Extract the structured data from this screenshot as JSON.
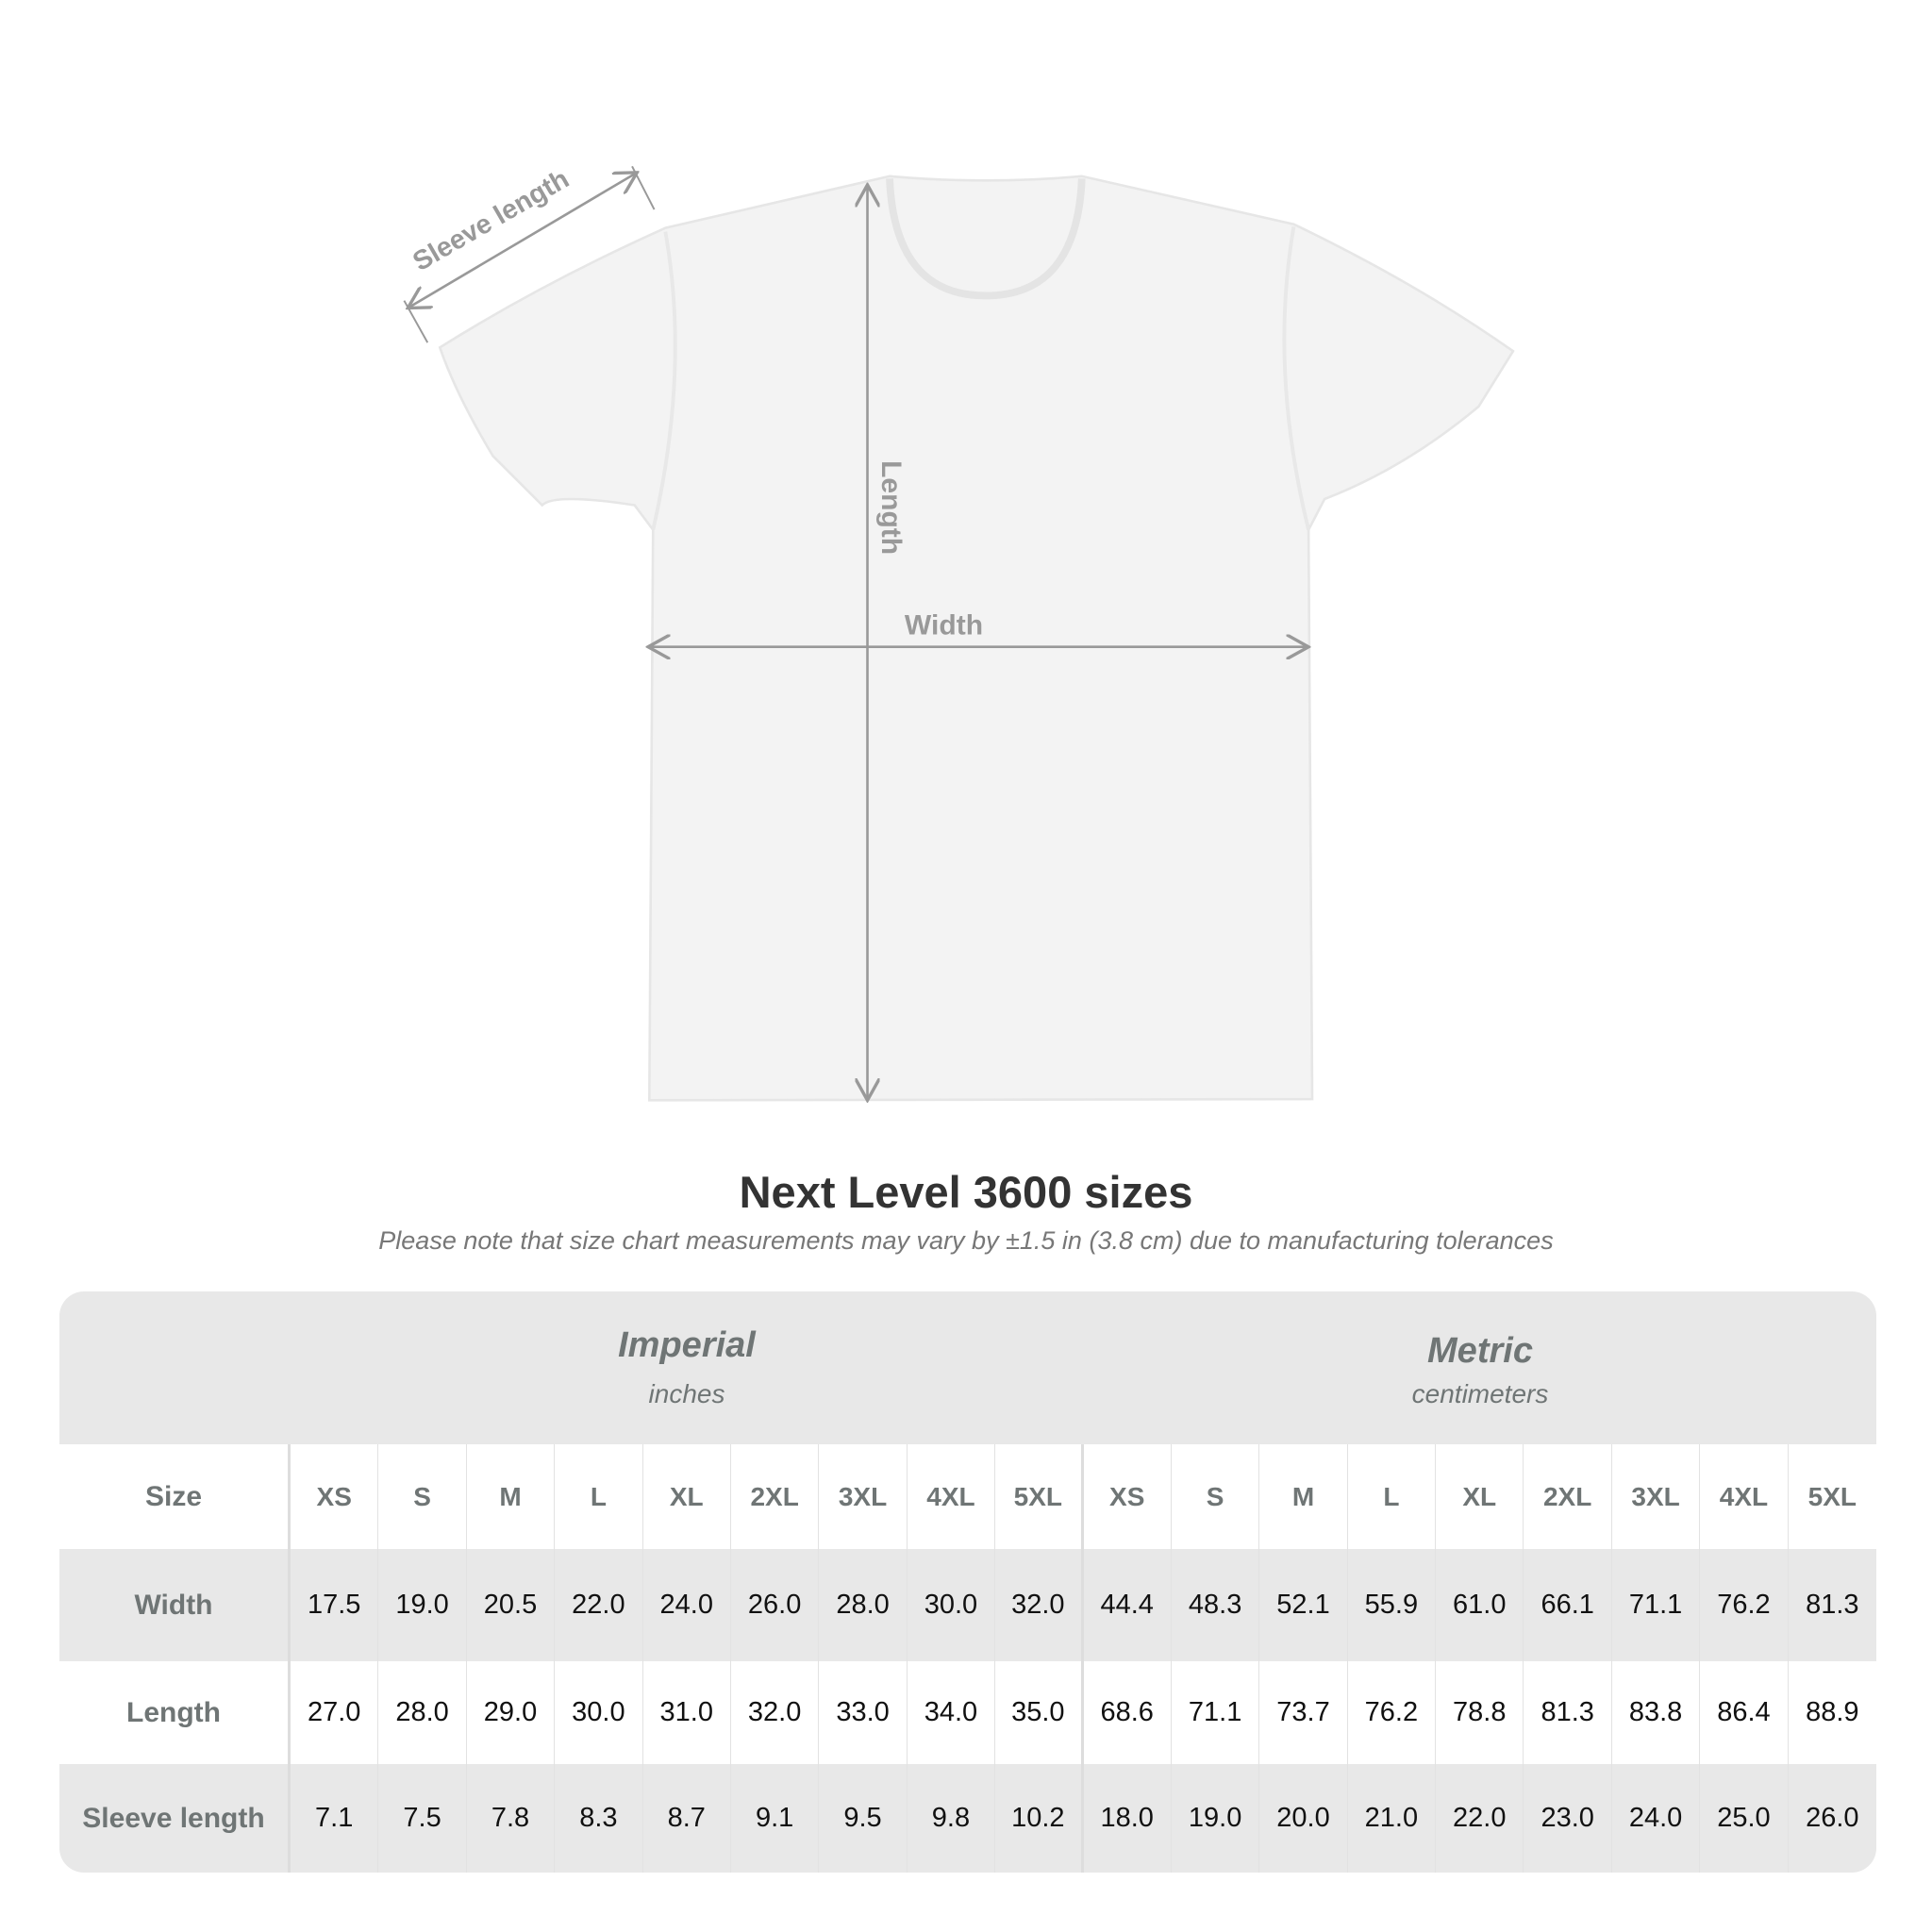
{
  "diagram": {
    "sleeve_label": "Sleeve length",
    "length_label": "Length",
    "width_label": "Width"
  },
  "title": "Next Level 3600 sizes",
  "note": "Please note that size chart measurements may vary by ±1.5 in (3.8 cm) due to manufacturing tolerances",
  "table": {
    "imperial": {
      "title": "Imperial",
      "unit": "inches"
    },
    "metric": {
      "title": "Metric",
      "unit": "centimeters"
    },
    "size_label": "Size",
    "sizes": [
      "XS",
      "S",
      "M",
      "L",
      "XL",
      "2XL",
      "3XL",
      "4XL",
      "5XL",
      "XS",
      "S",
      "M",
      "L",
      "XL",
      "2XL",
      "3XL",
      "4XL",
      "5XL"
    ],
    "rows": [
      {
        "label": "Width",
        "values": [
          "17.5",
          "19.0",
          "20.5",
          "22.0",
          "24.0",
          "26.0",
          "28.0",
          "30.0",
          "32.0",
          "44.4",
          "48.3",
          "52.1",
          "55.9",
          "61.0",
          "66.1",
          "71.1",
          "76.2",
          "81.3"
        ]
      },
      {
        "label": "Length",
        "values": [
          "27.0",
          "28.0",
          "29.0",
          "30.0",
          "31.0",
          "32.0",
          "33.0",
          "34.0",
          "35.0",
          "68.6",
          "71.1",
          "73.7",
          "76.2",
          "78.8",
          "81.3",
          "83.8",
          "86.4",
          "88.9"
        ]
      },
      {
        "label": "Sleeve length",
        "values": [
          "7.1",
          "7.5",
          "7.8",
          "8.3",
          "8.7",
          "9.1",
          "9.5",
          "9.8",
          "10.2",
          "18.0",
          "19.0",
          "20.0",
          "21.0",
          "22.0",
          "23.0",
          "24.0",
          "25.0",
          "26.0"
        ]
      }
    ]
  },
  "colors": {
    "header_bg": "#e8e8e8",
    "label_text": "#6f7575",
    "annotation": "#999999"
  }
}
